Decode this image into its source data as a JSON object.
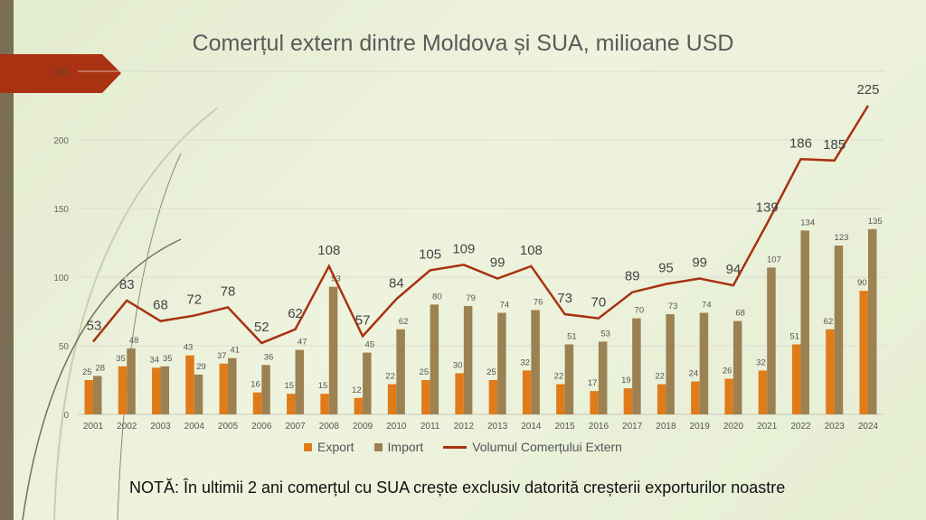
{
  "chart_data": {
    "type": "bar",
    "title": "Comerțul extern dintre Moldova și SUA, milioane USD",
    "categories": [
      "2001",
      "2002",
      "2003",
      "2004",
      "2005",
      "2006",
      "2007",
      "2008",
      "2009",
      "2010",
      "2011",
      "2012",
      "2013",
      "2014",
      "2015",
      "2016",
      "2017",
      "2018",
      "2019",
      "2020",
      "2021",
      "2022",
      "2023",
      "2024"
    ],
    "series": [
      {
        "name": "Export",
        "type": "bar",
        "color": "#e07b1a",
        "values": [
          25,
          35,
          34,
          43,
          37,
          16,
          15,
          15,
          12,
          22,
          25,
          30,
          25,
          32,
          22,
          17,
          19,
          22,
          24,
          26,
          32,
          51,
          62,
          90
        ]
      },
      {
        "name": "Import",
        "type": "bar",
        "color": "#9c8152",
        "values": [
          28,
          48,
          35,
          29,
          41,
          36,
          47,
          93,
          45,
          62,
          80,
          79,
          74,
          76,
          51,
          53,
          70,
          73,
          74,
          68,
          107,
          134,
          123,
          135
        ]
      },
      {
        "name": "Volumul Comerțului Extern",
        "type": "line",
        "color": "#a83212",
        "values": [
          53,
          83,
          68,
          72,
          78,
          52,
          62,
          108,
          57,
          84,
          105,
          109,
          99,
          108,
          73,
          70,
          89,
          95,
          99,
          94,
          139,
          186,
          185,
          225
        ]
      }
    ],
    "yticks": [
      "0",
      "50",
      "100",
      "150",
      "200",
      "250"
    ],
    "ylim": [
      0,
      250
    ],
    "grid": true,
    "legend": "bottom"
  },
  "note": "NOTĂ: În ultimii 2 ani comerțul cu SUA  crește exclusiv datorită creșterii exporturilor noastre"
}
